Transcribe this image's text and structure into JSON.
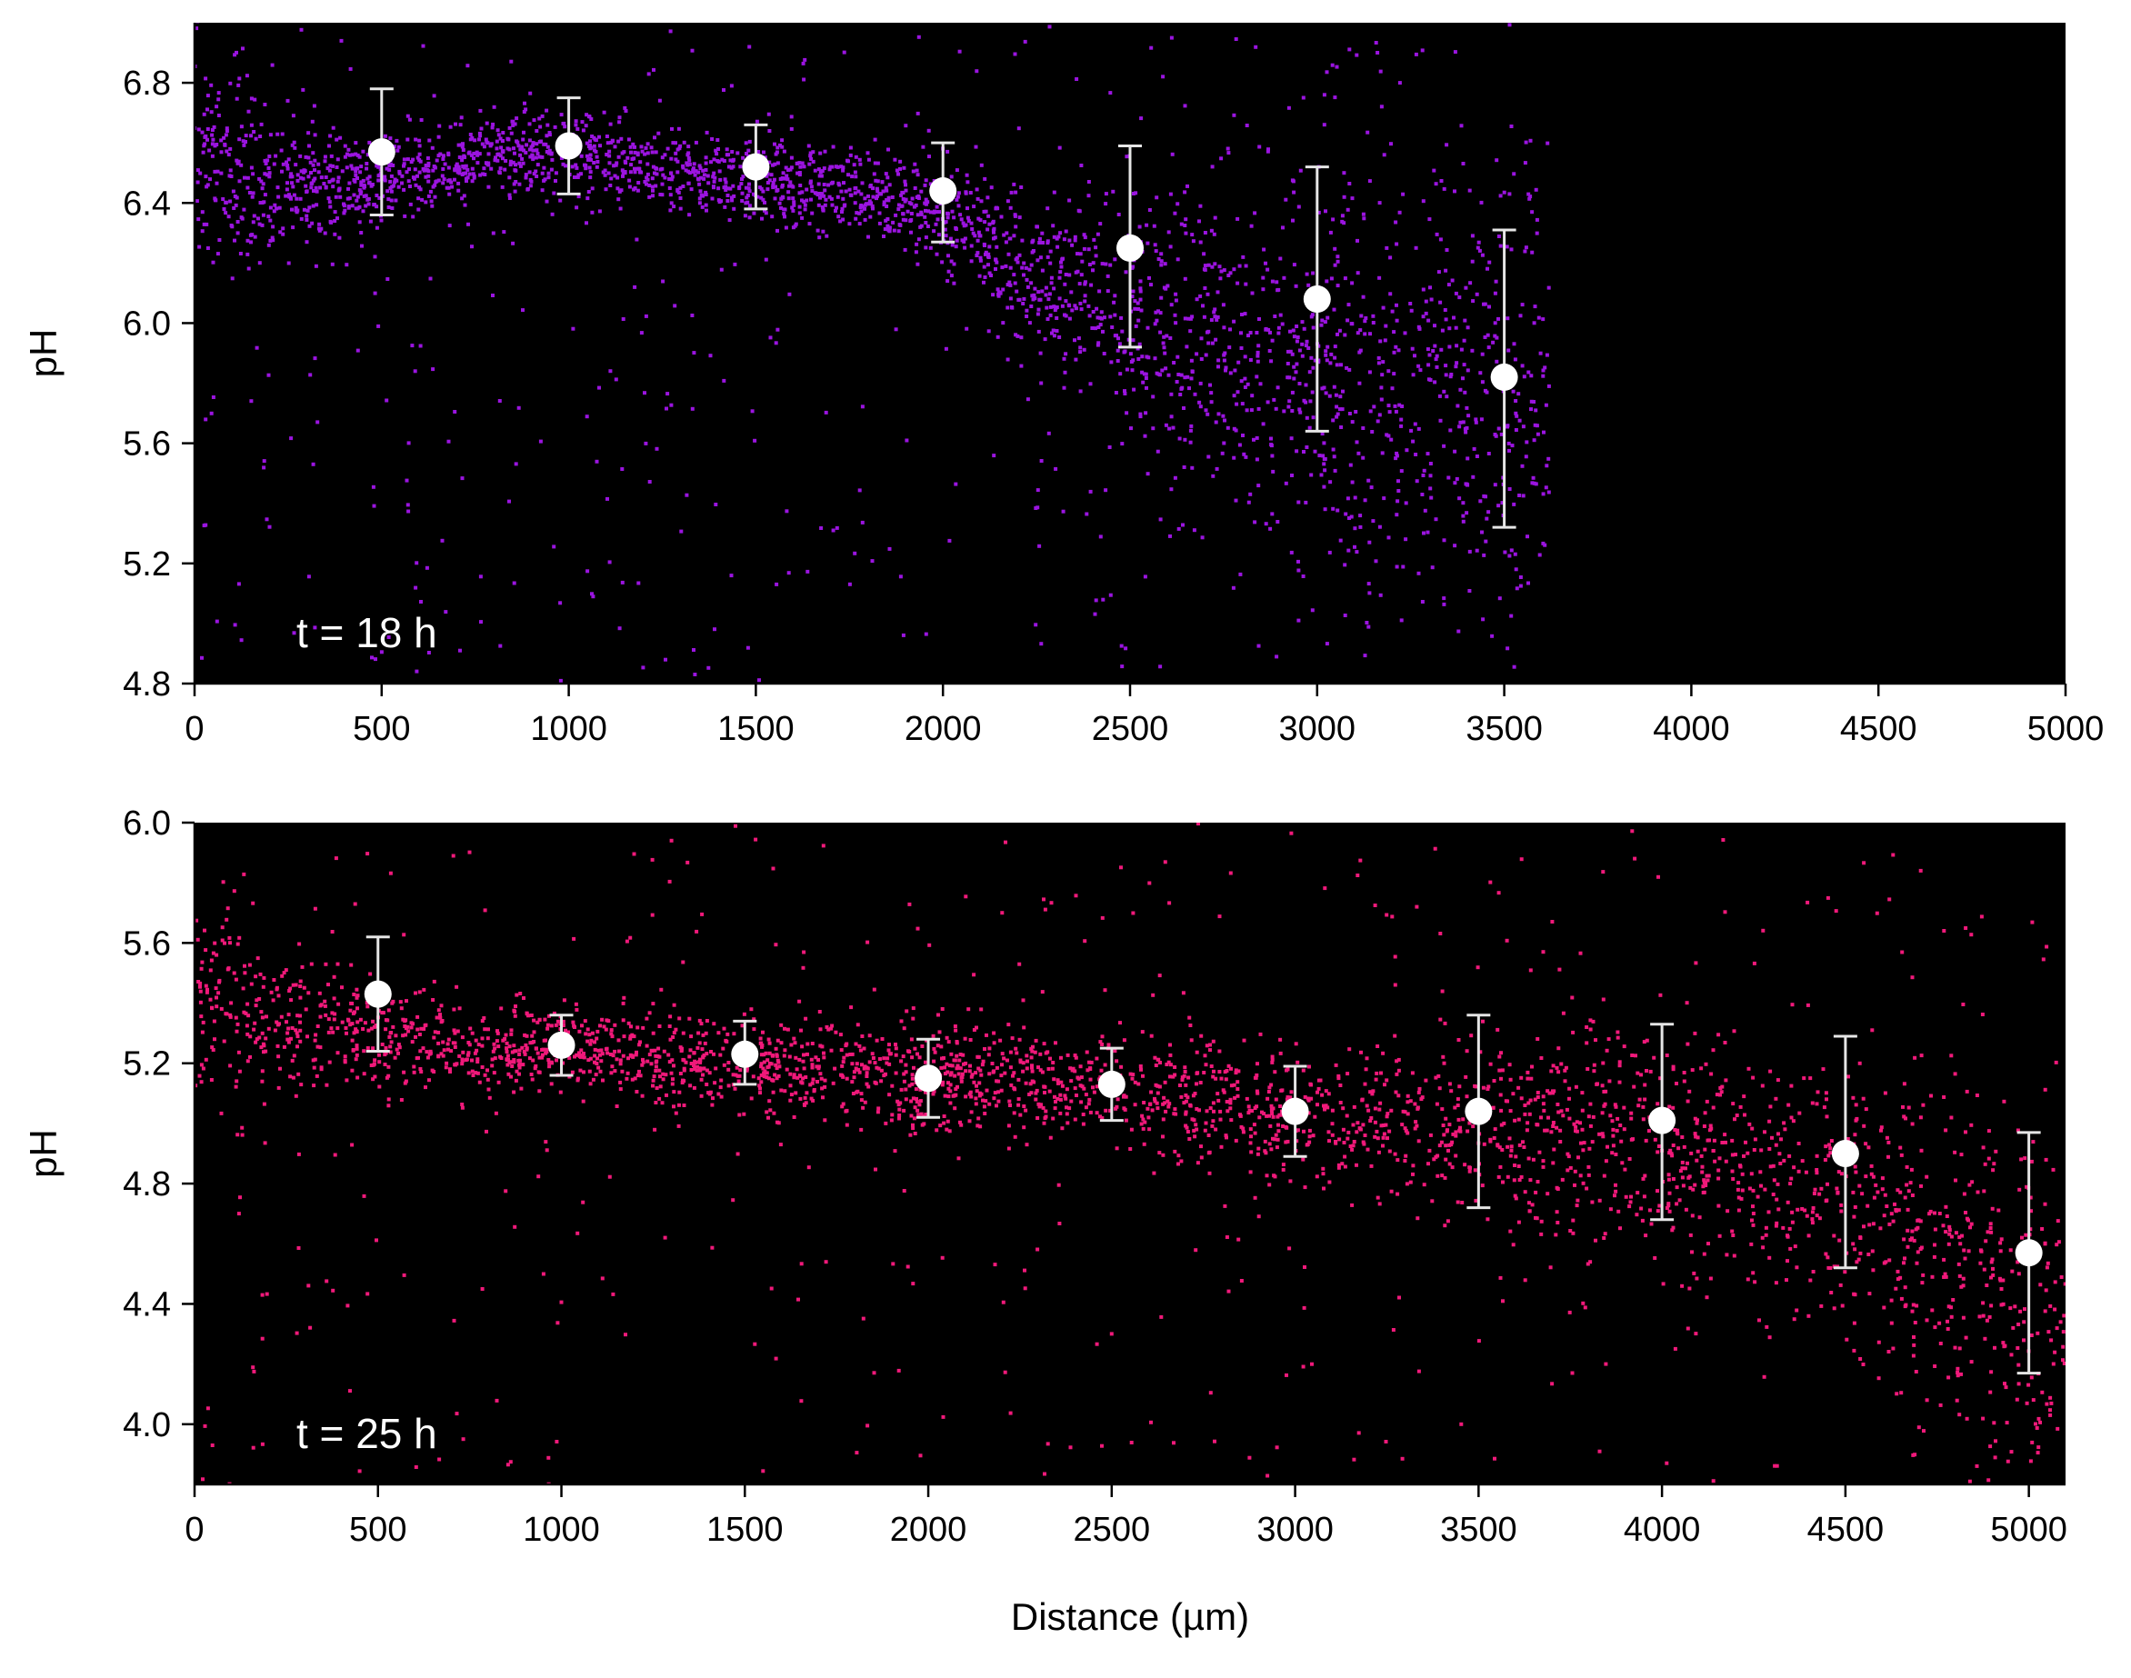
{
  "colors": {
    "plot_background": "#000000",
    "panel1_points": "#9b14e0",
    "panel2_points": "#f0197a",
    "summary_markers": "#ffffff",
    "error_bars": "#e6e6e6",
    "axes": "#000000"
  },
  "chart_data": [
    {
      "type": "scatter",
      "annotation": "t = 18 h",
      "xlabel": "",
      "ylabel": "pH",
      "xlim": [
        0,
        5000
      ],
      "ylim": [
        4.8,
        7.0
      ],
      "x_ticks": [
        0,
        500,
        1000,
        1500,
        2000,
        2500,
        3000,
        3500,
        4000,
        4500,
        5000
      ],
      "x_tick_labels": [
        "0",
        "500",
        "1000",
        "1500",
        "2000",
        "2500",
        "3000",
        "3500",
        "4000",
        "4500",
        "5000"
      ],
      "y_ticks": [
        4.8,
        5.2,
        5.6,
        6.0,
        6.4,
        6.8
      ],
      "y_tick_labels": [
        "4.8",
        "5.2",
        "5.6",
        "6.0",
        "6.4",
        "6.8"
      ],
      "grid": false,
      "background": "black",
      "point_color": "#9b14e0",
      "summary": {
        "x": [
          500,
          1000,
          1500,
          2000,
          2500,
          3000,
          3500
        ],
        "mean": [
          6.57,
          6.59,
          6.52,
          6.44,
          6.25,
          6.08,
          5.82
        ],
        "upper": [
          6.78,
          6.75,
          6.66,
          6.6,
          6.59,
          6.52,
          6.31
        ],
        "lower": [
          6.36,
          6.43,
          6.38,
          6.27,
          5.92,
          5.64,
          5.32
        ]
      },
      "scatter_profile": {
        "x": [
          0,
          250,
          500,
          750,
          1000,
          1250,
          1500,
          1750,
          2000,
          2250,
          2500,
          2750,
          3000,
          3250,
          3500,
          3600
        ],
        "y": [
          6.6,
          6.45,
          6.48,
          6.55,
          6.58,
          6.5,
          6.48,
          6.44,
          6.36,
          6.18,
          6.0,
          5.9,
          5.85,
          5.8,
          5.8,
          5.8
        ],
        "spread": [
          0.2,
          0.1,
          0.06,
          0.06,
          0.07,
          0.07,
          0.07,
          0.07,
          0.09,
          0.13,
          0.2,
          0.26,
          0.32,
          0.36,
          0.38,
          0.38
        ]
      }
    },
    {
      "type": "scatter",
      "annotation": "t = 25 h",
      "xlabel": "Distance (µm)",
      "ylabel": "pH",
      "xlim": [
        0,
        5100
      ],
      "ylim": [
        3.8,
        6.0
      ],
      "x_ticks": [
        0,
        500,
        1000,
        1500,
        2000,
        2500,
        3000,
        3500,
        4000,
        4500,
        5000
      ],
      "x_tick_labels": [
        "0",
        "500",
        "1000",
        "1500",
        "2000",
        "2500",
        "3000",
        "3500",
        "4000",
        "4500",
        "5000"
      ],
      "y_ticks": [
        4.0,
        4.4,
        4.8,
        5.2,
        5.6,
        6.0
      ],
      "y_tick_labels": [
        "4.0",
        "4.4",
        "4.8",
        "5.2",
        "5.6",
        "6.0"
      ],
      "grid": false,
      "background": "black",
      "point_color": "#f0197a",
      "summary": {
        "x": [
          500,
          1000,
          1500,
          2000,
          2500,
          3000,
          3500,
          4000,
          4500,
          5000
        ],
        "mean": [
          5.43,
          5.26,
          5.23,
          5.15,
          5.13,
          5.04,
          5.04,
          5.01,
          4.9,
          4.57
        ],
        "upper": [
          5.62,
          5.36,
          5.34,
          5.28,
          5.25,
          5.19,
          5.36,
          5.33,
          5.29,
          4.97
        ],
        "lower": [
          5.24,
          5.16,
          5.13,
          5.02,
          5.01,
          4.89,
          4.72,
          4.68,
          4.52,
          4.17
        ]
      },
      "scatter_profile": {
        "x": [
          0,
          250,
          500,
          750,
          1000,
          1250,
          1500,
          1750,
          2000,
          2250,
          2500,
          2750,
          3000,
          3250,
          3500,
          3750,
          4000,
          4250,
          4500,
          4750,
          5000,
          5100
        ],
        "y": [
          5.4,
          5.35,
          5.3,
          5.25,
          5.25,
          5.22,
          5.2,
          5.18,
          5.15,
          5.14,
          5.12,
          5.08,
          5.03,
          5.0,
          4.98,
          4.95,
          4.92,
          4.85,
          4.75,
          4.6,
          4.4,
          4.4
        ],
        "spread": [
          0.15,
          0.12,
          0.1,
          0.08,
          0.07,
          0.07,
          0.08,
          0.08,
          0.09,
          0.09,
          0.09,
          0.1,
          0.1,
          0.12,
          0.16,
          0.18,
          0.2,
          0.22,
          0.25,
          0.28,
          0.3,
          0.3
        ]
      }
    }
  ]
}
